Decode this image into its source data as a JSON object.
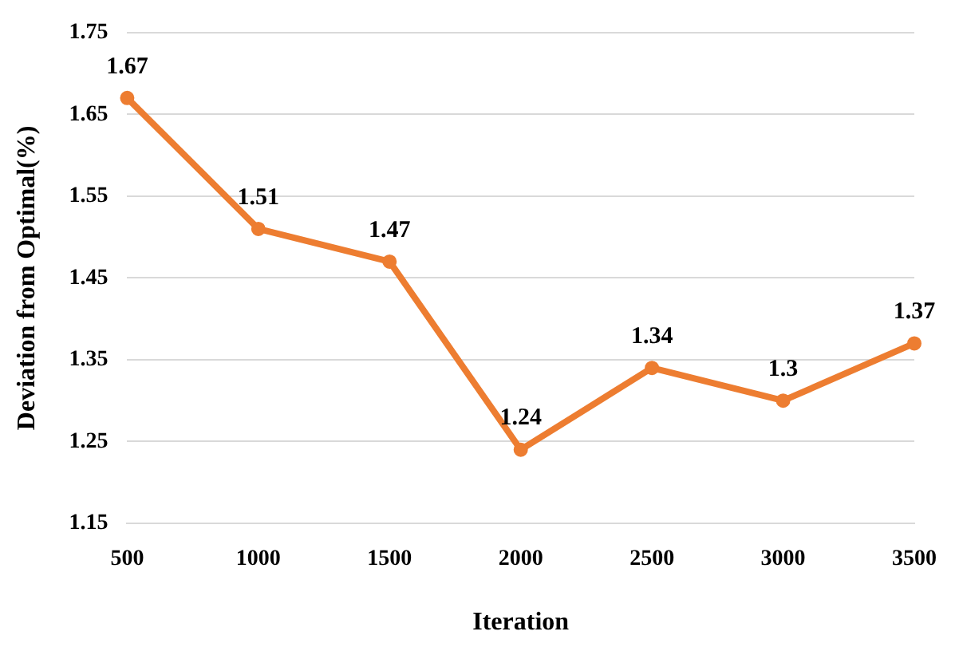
{
  "chart_data": {
    "type": "line",
    "xlabel": "Iteration",
    "ylabel": "Deviation from Optimal(%)",
    "categories": [
      "500",
      "1000",
      "1500",
      "2000",
      "2500",
      "3000",
      "3500"
    ],
    "series": [
      {
        "color": "#ed7d31",
        "values": [
          1.67,
          1.51,
          1.47,
          1.24,
          1.34,
          1.3,
          1.37
        ]
      }
    ],
    "ylim": [
      1.15,
      1.75
    ],
    "yticks": [
      1.15,
      1.25,
      1.35,
      1.45,
      1.55,
      1.65,
      1.75
    ],
    "grid": "y",
    "marker": "circle",
    "line_style": "solid",
    "data_labels": true,
    "legend": false
  }
}
